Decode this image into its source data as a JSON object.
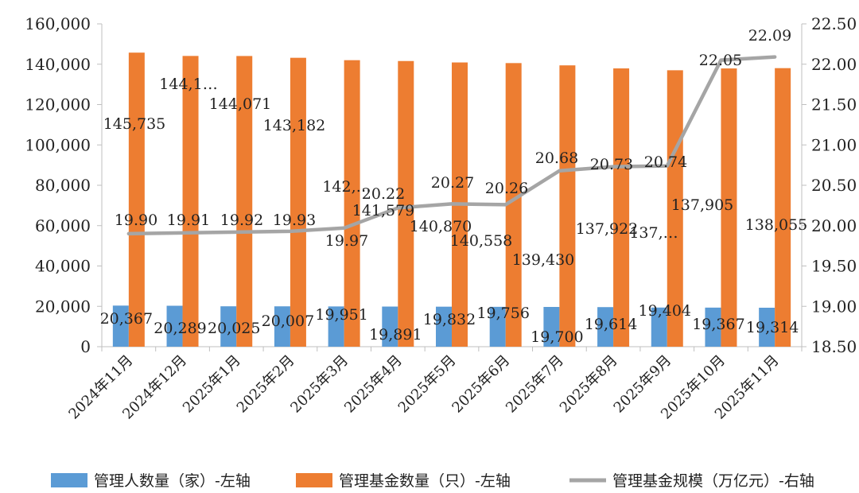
{
  "chart_data": {
    "type": "bar",
    "categories": [
      "2024年11月",
      "2024年12月",
      "2025年1月",
      "2025年2月",
      "2025年3月",
      "2025年4月",
      "2025年5月",
      "2025年6月",
      "2025年7月",
      "2025年8月",
      "2025年9月",
      "2025年10月",
      "2025年11月"
    ],
    "y_left": {
      "min": 0,
      "max": 160000,
      "step": 20000,
      "tick_labels": [
        "0",
        "20,000",
        "40,000",
        "60,000",
        "80,000",
        "100,000",
        "120,000",
        "140,000",
        "160,000"
      ]
    },
    "y_right": {
      "min": 18.5,
      "max": 22.5,
      "step": 0.5,
      "tick_labels": [
        "18.50",
        "19.00",
        "19.50",
        "20.00",
        "20.50",
        "21.00",
        "21.50",
        "22.00",
        "22.50"
      ]
    },
    "series": [
      {
        "name": "管理人数量（家）-左轴",
        "kind": "bar",
        "axis": "left",
        "color": "#5B9BD5",
        "values": [
          20367,
          20289,
          20025,
          20007,
          19951,
          19891,
          19832,
          19756,
          19700,
          19614,
          19404,
          19367,
          19314
        ],
        "labels": [
          "20,367",
          "20,289",
          "20,025",
          "20,007",
          "19,951",
          "19,891",
          "19,832",
          "19,756",
          "19,700",
          "19,614",
          "19,404",
          "19,367",
          "19,314"
        ]
      },
      {
        "name": "管理基金数量（只）-左轴",
        "kind": "bar",
        "axis": "left",
        "color": "#ED7D31",
        "values": [
          145735,
          144100,
          144071,
          143182,
          142000,
          141579,
          140870,
          140558,
          139430,
          137922,
          137000,
          137905,
          138055
        ],
        "labels": [
          "145,735",
          "144,1…",
          "144,071",
          "143,182",
          "142,…",
          "141,579",
          "140,870",
          "140,558",
          "139,430",
          "137,922",
          "137,…",
          "137,905",
          "138,055"
        ]
      },
      {
        "name": "管理基金规模（万亿元）-右轴",
        "kind": "line",
        "axis": "right",
        "color": "#A5A5A5",
        "values": [
          19.9,
          19.91,
          19.92,
          19.93,
          19.97,
          20.22,
          20.27,
          20.26,
          20.68,
          20.73,
          20.74,
          22.05,
          22.09
        ],
        "labels": [
          "19.90",
          "19.91",
          "19.92",
          "19.93",
          "19.97",
          "20.22",
          "20.27",
          "20.26",
          "20.68",
          "20.73",
          "20.74",
          "22.05",
          "22.09"
        ]
      }
    ],
    "legend_position": "bottom",
    "grid": false
  }
}
